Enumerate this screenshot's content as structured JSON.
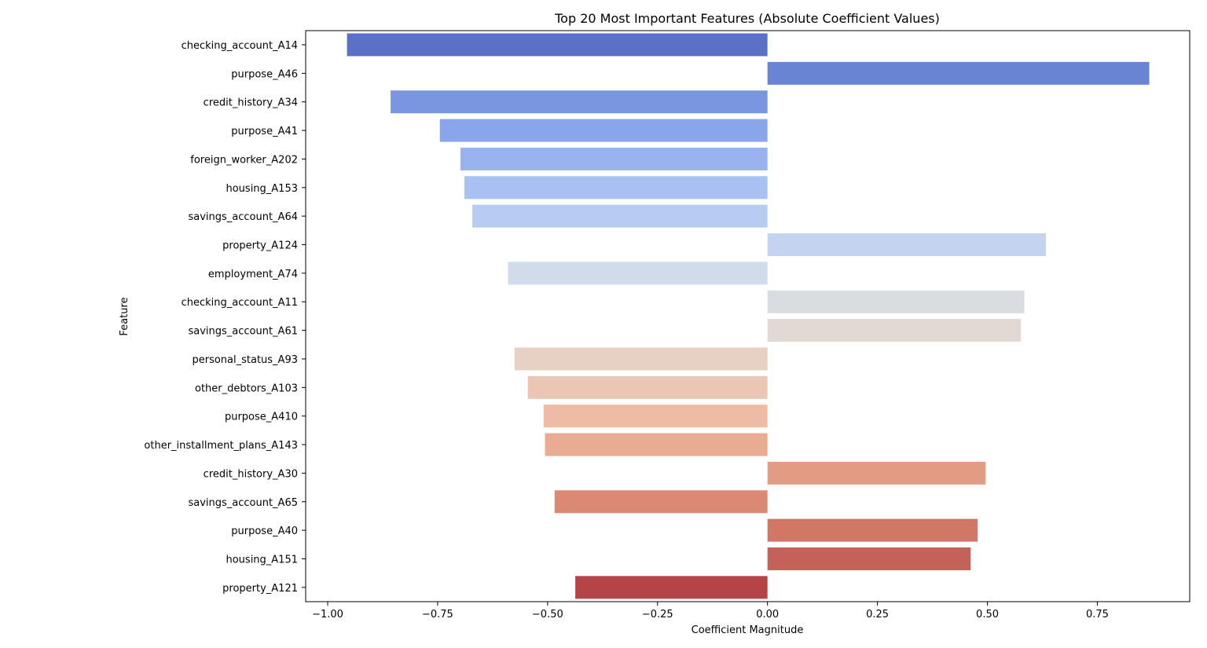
{
  "chart_data": {
    "type": "bar",
    "orientation": "horizontal",
    "title": "Top 20 Most Important Features (Absolute Coefficient Values)",
    "xlabel": "Coefficient Magnitude",
    "ylabel": "Feature",
    "xlim": [
      -1.05,
      0.96
    ],
    "xticks": [
      -1.0,
      -0.75,
      -0.5,
      -0.25,
      0.0,
      0.25,
      0.5,
      0.75
    ],
    "xtick_labels": [
      "−1.00",
      "−0.75",
      "−0.50",
      "−0.25",
      "0.00",
      "0.25",
      "0.50",
      "0.75"
    ],
    "grid": false,
    "legend": "none",
    "palette": "coolwarm",
    "categories": [
      "checking_account_A14",
      "purpose_A46",
      "credit_history_A34",
      "purpose_A41",
      "foreign_worker_A202",
      "housing_A153",
      "savings_account_A64",
      "property_A124",
      "employment_A74",
      "checking_account_A11",
      "savings_account_A61",
      "personal_status_A93",
      "other_debtors_A103",
      "purpose_A410",
      "other_installment_plans_A143",
      "credit_history_A30",
      "savings_account_A65",
      "purpose_A40",
      "housing_A151",
      "property_A121"
    ],
    "values": [
      -0.956,
      0.868,
      -0.857,
      -0.745,
      -0.698,
      -0.689,
      -0.671,
      0.633,
      -0.59,
      0.584,
      0.576,
      -0.575,
      -0.545,
      -0.509,
      -0.506,
      0.496,
      -0.484,
      0.478,
      0.462,
      -0.437
    ],
    "colors": [
      "#5b70c7",
      "#6a84d4",
      "#7b96e1",
      "#8aa6ea",
      "#99b3ee",
      "#a8c0f2",
      "#b7ccf3",
      "#c4d3ef",
      "#d0dbec",
      "#d9dce1",
      "#e2d9d5",
      "#e8d0c5",
      "#ebc6b5",
      "#eebba4",
      "#eaab93",
      "#e39c84",
      "#db8874",
      "#d07766",
      "#c46158",
      "#b54446"
    ]
  }
}
